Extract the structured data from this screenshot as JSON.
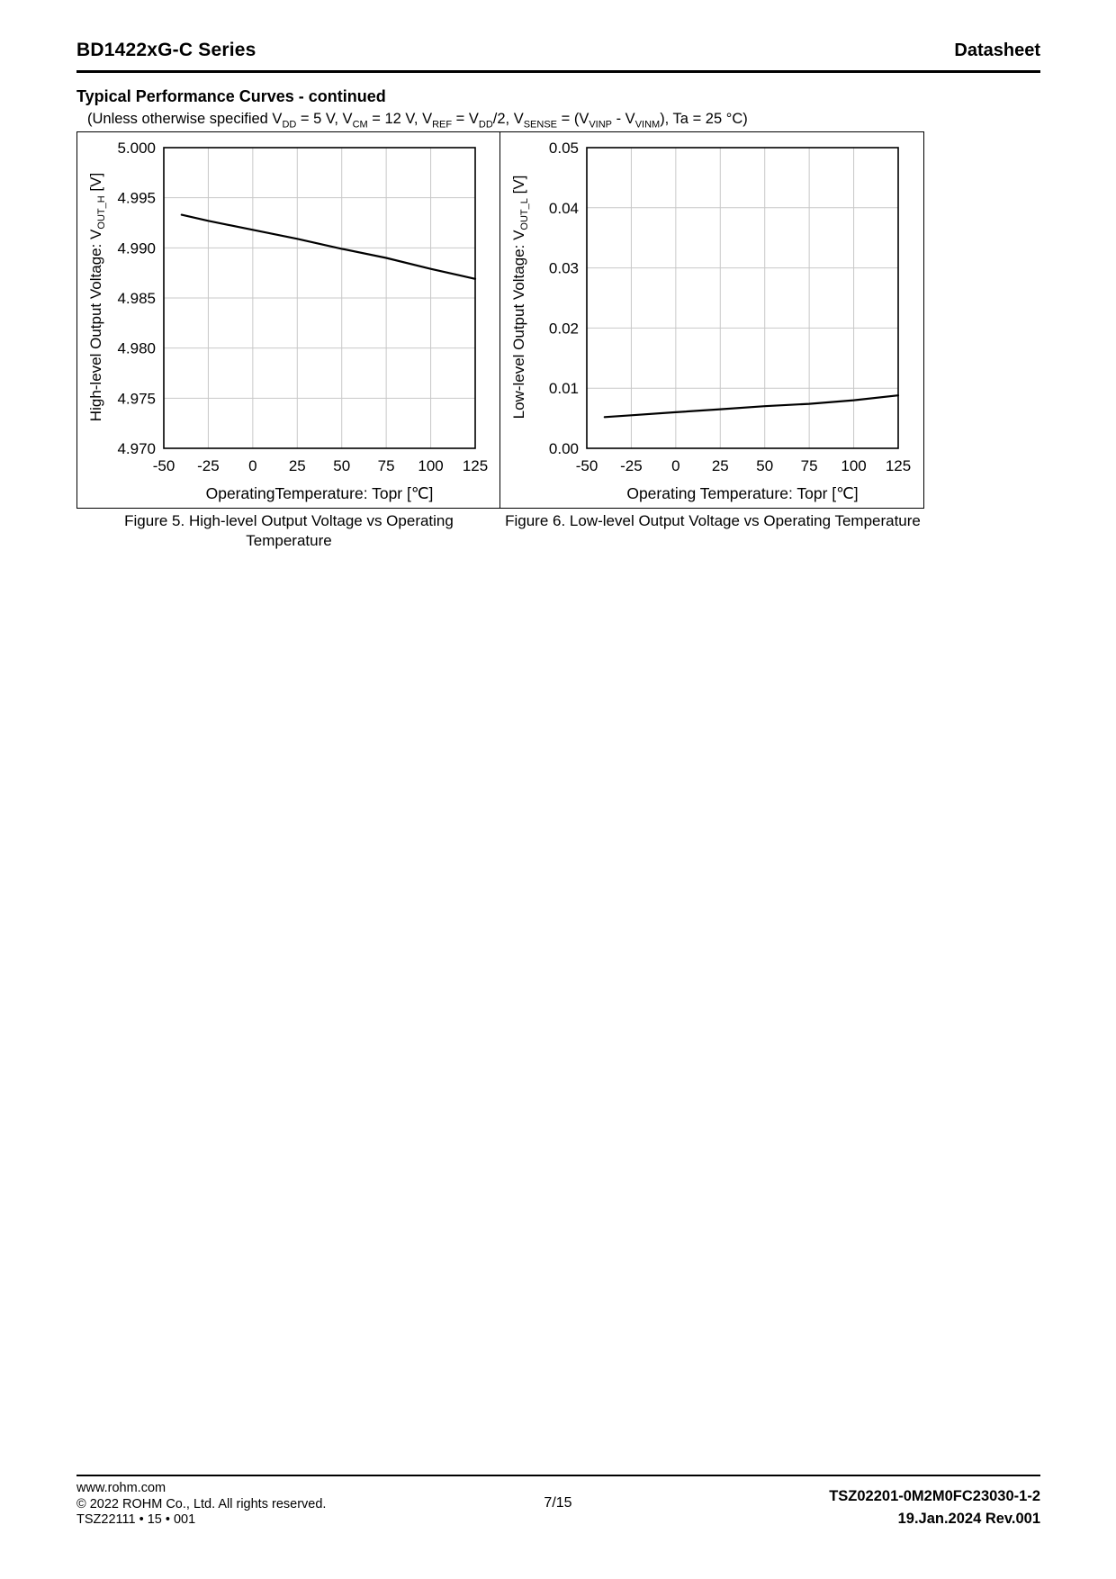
{
  "header": {
    "product": "BD1422xG-C Series",
    "doc_type": "Datasheet"
  },
  "section": {
    "title": "Typical Performance Curves - continued",
    "conditions_parts": [
      {
        "t": "(Unless otherwise specified V"
      },
      {
        "t": "DD",
        "sub": true
      },
      {
        "t": " = 5 V, V"
      },
      {
        "t": "CM",
        "sub": true
      },
      {
        "t": " = 12 V, V"
      },
      {
        "t": "REF",
        "sub": true
      },
      {
        "t": " = V"
      },
      {
        "t": "DD",
        "sub": true
      },
      {
        "t": "/2, V"
      },
      {
        "t": "SENSE",
        "sub": true
      },
      {
        "t": " = (V"
      },
      {
        "t": "VINP",
        "sub": true
      },
      {
        "t": " - V"
      },
      {
        "t": "VINM",
        "sub": true
      },
      {
        "t": "), Ta = 25 °C)"
      }
    ]
  },
  "chart_data": [
    {
      "type": "line",
      "title": "Figure 5. High-level Output Voltage vs Operating\nTemperature",
      "xlabel": "OperatingTemperature: Topr [℃]",
      "ylabel": "High-level Output Voltage: V_OUT_H [V]",
      "ylabel_parts": [
        {
          "t": "High-level Output Voltage: V"
        },
        {
          "t": "OUT_H",
          "sub": true
        },
        {
          "t": " [V]"
        }
      ],
      "xlim": [
        -50,
        125
      ],
      "ylim": [
        4.97,
        5.0
      ],
      "xticks": [
        -50,
        -25,
        0,
        25,
        50,
        75,
        100,
        125
      ],
      "yticks": [
        {
          "v": 5.0,
          "label": "5.000"
        },
        {
          "v": 4.995,
          "label": "4.995"
        },
        {
          "v": 4.99,
          "label": "4.990"
        },
        {
          "v": 4.985,
          "label": "4.985"
        },
        {
          "v": 4.98,
          "label": "4.980"
        },
        {
          "v": 4.975,
          "label": "4.975"
        },
        {
          "v": 4.97,
          "label": "4.970"
        }
      ],
      "grid": true,
      "legend": false,
      "series": [
        {
          "name": "VOUT_H vs Topr",
          "x": [
            -40,
            -25,
            0,
            25,
            50,
            75,
            100,
            125
          ],
          "y": [
            4.9933,
            4.9927,
            4.9918,
            4.9909,
            4.9899,
            4.989,
            4.9879,
            4.9869
          ]
        }
      ]
    },
    {
      "type": "line",
      "title": "Figure 6. Low-level Output Voltage vs Operating Temperature",
      "xlabel": "Operating Temperature: Topr [℃]",
      "ylabel": "Low-level Output Voltage: V_OUT_L [V]",
      "ylabel_parts": [
        {
          "t": "Low-level Output Voltage: V"
        },
        {
          "t": "OUT_L",
          "sub": true
        },
        {
          "t": " [V]"
        }
      ],
      "xlim": [
        -50,
        125
      ],
      "ylim": [
        0.0,
        0.05
      ],
      "xticks": [
        -50,
        -25,
        0,
        25,
        50,
        75,
        100,
        125
      ],
      "yticks": [
        {
          "v": 0.05,
          "label": "0.05"
        },
        {
          "v": 0.04,
          "label": "0.04"
        },
        {
          "v": 0.03,
          "label": "0.03"
        },
        {
          "v": 0.02,
          "label": "0.02"
        },
        {
          "v": 0.01,
          "label": "0.01"
        },
        {
          "v": 0.0,
          "label": "0.00"
        }
      ],
      "grid": true,
      "legend": false,
      "series": [
        {
          "name": "VOUT_L vs Topr",
          "x": [
            -40,
            -25,
            0,
            25,
            50,
            75,
            100,
            125
          ],
          "y": [
            0.0052,
            0.0055,
            0.006,
            0.0065,
            0.007,
            0.0074,
            0.008,
            0.0088
          ]
        }
      ]
    }
  ],
  "footer": {
    "url": "www.rohm.com",
    "copyright": "© 2022 ROHM Co., Ltd. All rights reserved.",
    "code": "TSZ22111 • 15 • 001",
    "page": "7/15",
    "doc_number": "TSZ02201-0M2M0FC23030-1-2",
    "revision": "19.Jan.2024 Rev.001"
  }
}
